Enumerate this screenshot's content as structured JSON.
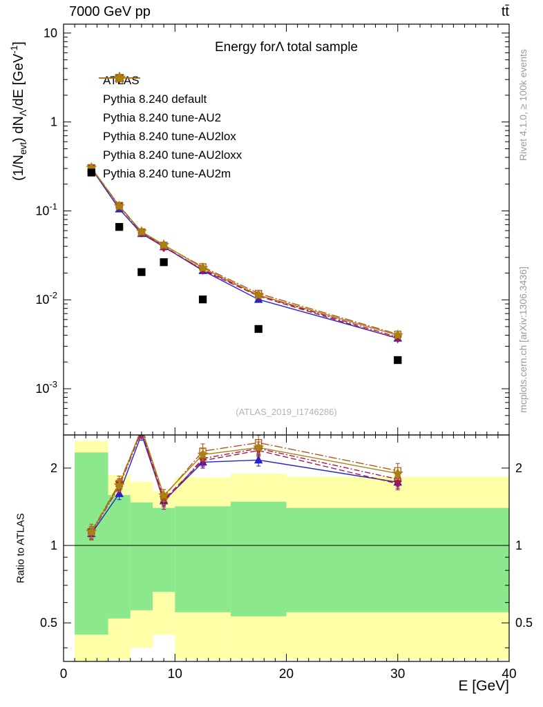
{
  "header": {
    "left": "7000 GeV pp",
    "right": "tt̄"
  },
  "right_margin": {
    "top": "Rivet 4.1.0, ≥ 100k events",
    "bottom": "mcplots.cern.ch [arXiv:1306.3436]"
  },
  "watermark": "(ATLAS_2019_I1746286)",
  "chart_data": {
    "type": "line",
    "panels": [
      "main-log",
      "ratio"
    ],
    "title": "Energy forΛ total sample",
    "xlabel": "E [GeV]",
    "ylabel": "(1/N_evt) dN_Λ/dE [GeV^-1]",
    "ylabel_parts": {
      "p1": "(1/N",
      "sub1": "evt",
      "p2": ") dN",
      "sub2": "Λ",
      "p3": "/dE [GeV",
      "sup1": "-1",
      "p4": "]"
    },
    "ratio_ylabel": "Ratio to ATLAS",
    "legend_position": "upper-left",
    "grid": false,
    "xlim": [
      0,
      40
    ],
    "x_major_ticks": [
      0,
      10,
      20,
      30,
      40
    ],
    "ylog_min": -3.52,
    "ylog_max": 1.1,
    "y_major_tick_labels": [
      "10^-3",
      "10^-2",
      "10^-1",
      "1",
      "10"
    ],
    "ratio_ylim": [
      0.354,
      2.69
    ],
    "ratio_major_ticks": [
      0.5,
      1,
      2
    ],
    "ratio_minor_ticks": [
      0.4,
      0.6,
      0.7,
      0.8,
      0.9
    ],
    "band_colors": {
      "yellow": "#ffffa8",
      "green": "#8ce88c"
    },
    "x": [
      2.5,
      5,
      7,
      9,
      12.5,
      17.5,
      30
    ],
    "bin_edges": [
      1,
      4,
      6,
      8,
      10,
      15,
      20,
      40
    ],
    "reference": {
      "name": "ATLAS",
      "marker": "square",
      "color": "#000000",
      "y": [
        0.27,
        0.066,
        0.0205,
        0.0265,
        0.0101,
        0.0047,
        0.0021
      ],
      "yerr_rel": 0.05
    },
    "series": [
      {
        "name": "Pythia 8.240 default",
        "color": "#2424cc",
        "marker": "triangle-up",
        "fill": true,
        "dash": "",
        "y": [
          0.3,
          0.105,
          0.0555,
          0.0395,
          0.0213,
          0.0101,
          0.0037
        ],
        "yerr_rel": 0.035
      },
      {
        "name": "Pythia 8.240 tune-AU2",
        "color": "#a11a4d",
        "marker": "triangle-down",
        "fill": true,
        "dash": "8 4",
        "y": [
          0.304,
          0.114,
          0.0575,
          0.04,
          0.0216,
          0.011,
          0.00365
        ],
        "yerr_rel": 0.035
      },
      {
        "name": "Pythia 8.240 tune-AU2lox",
        "color": "#b0124e",
        "marker": "diamond",
        "fill": false,
        "dash": "2 3 8 3",
        "y": [
          0.302,
          0.112,
          0.057,
          0.039,
          0.022,
          0.0112,
          0.0038
        ],
        "yerr_rel": 0.04
      },
      {
        "name": "Pythia 8.240 tune-AU2loxx",
        "color": "#b65418",
        "marker": "square",
        "fill": false,
        "dash": "12 3 2 3",
        "y": [
          0.306,
          0.115,
          0.058,
          0.041,
          0.0235,
          0.0118,
          0.0041
        ],
        "yerr_rel": 0.045
      },
      {
        "name": "Pythia 8.240 tune-AU2m",
        "color": "#a8820f",
        "marker": "star",
        "fill": true,
        "dash": "",
        "y": [
          0.305,
          0.113,
          0.0585,
          0.0415,
          0.0228,
          0.0113,
          0.004
        ],
        "yerr_rel": 0.035
      }
    ],
    "bands": [
      {
        "x0": 1,
        "x1": 4,
        "green": [
          0.45,
          2.3
        ],
        "yellow": [
          0.33,
          2.55
        ]
      },
      {
        "x0": 4,
        "x1": 6,
        "green": [
          0.52,
          1.57
        ],
        "yellow": [
          0.36,
          1.88
        ]
      },
      {
        "x0": 6,
        "x1": 8,
        "green": [
          0.56,
          1.47
        ],
        "yellow": [
          0.4,
          1.77
        ]
      },
      {
        "x0": 8,
        "x1": 10,
        "green": [
          0.66,
          1.4
        ],
        "yellow": [
          0.45,
          1.62
        ]
      },
      {
        "x0": 10,
        "x1": 15,
        "green": [
          0.55,
          1.42
        ],
        "yellow": [
          0.36,
          1.84
        ]
      },
      {
        "x0": 15,
        "x1": 20,
        "green": [
          0.53,
          1.48
        ],
        "yellow": [
          0.36,
          1.9
        ]
      },
      {
        "x0": 20,
        "x1": 40,
        "green": [
          0.55,
          1.4
        ],
        "yellow": [
          0.36,
          1.85
        ]
      }
    ]
  }
}
